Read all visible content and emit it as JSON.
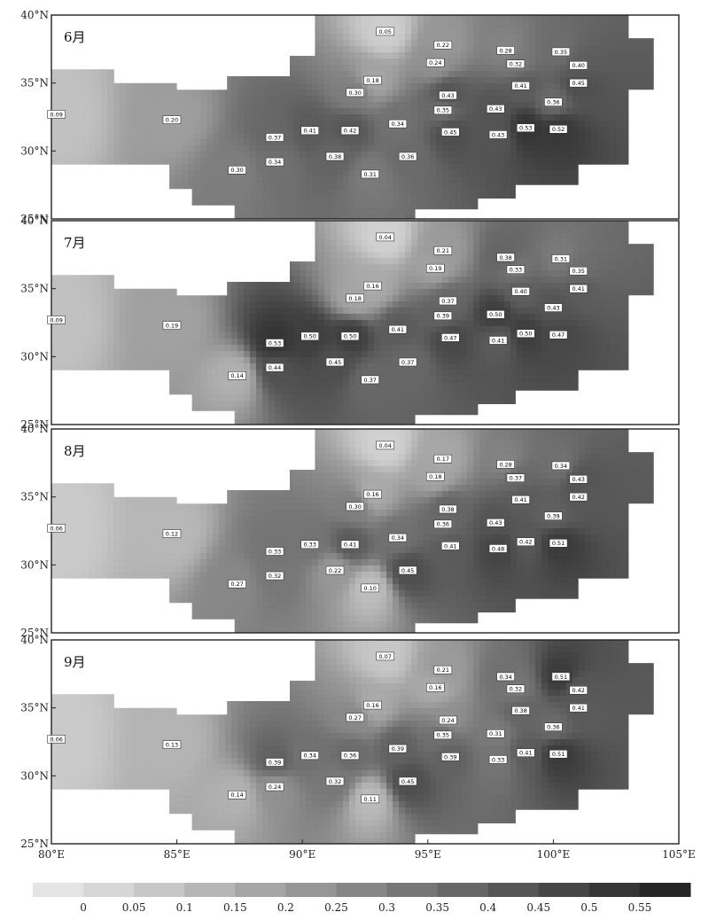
{
  "panels": [
    {
      "month": "6月",
      "stations": [
        {
          "label": "0.05",
          "lon": 93.3,
          "lat": 38.8,
          "v": 0.05
        },
        {
          "label": "0.22",
          "lon": 95.6,
          "lat": 37.8,
          "v": 0.22
        },
        {
          "label": "0.28",
          "lon": 98.1,
          "lat": 37.4,
          "v": 0.28
        },
        {
          "label": "0.35",
          "lon": 100.3,
          "lat": 37.3,
          "v": 0.35
        },
        {
          "label": "0.24",
          "lon": 95.3,
          "lat": 36.5,
          "v": 0.24
        },
        {
          "label": "0.32",
          "lon": 98.5,
          "lat": 36.4,
          "v": 0.32
        },
        {
          "label": "0.40",
          "lon": 101.0,
          "lat": 36.3,
          "v": 0.4
        },
        {
          "label": "0.18",
          "lon": 92.8,
          "lat": 35.2,
          "v": 0.18
        },
        {
          "label": "0.41",
          "lon": 98.7,
          "lat": 34.8,
          "v": 0.41
        },
        {
          "label": "0.45",
          "lon": 101.0,
          "lat": 35.0,
          "v": 0.45
        },
        {
          "label": "0.30",
          "lon": 92.1,
          "lat": 34.3,
          "v": 0.3
        },
        {
          "label": "0.43",
          "lon": 95.8,
          "lat": 34.1,
          "v": 0.43
        },
        {
          "label": "0.36",
          "lon": 100.0,
          "lat": 33.6,
          "v": 0.36
        },
        {
          "label": "0.09",
          "lon": 80.2,
          "lat": 32.7,
          "v": 0.09
        },
        {
          "label": "0.20",
          "lon": 84.8,
          "lat": 32.3,
          "v": 0.2
        },
        {
          "label": "0.35",
          "lon": 95.6,
          "lat": 33.0,
          "v": 0.35
        },
        {
          "label": "0.43",
          "lon": 97.7,
          "lat": 33.1,
          "v": 0.43
        },
        {
          "label": "0.34",
          "lon": 93.8,
          "lat": 32.0,
          "v": 0.34
        },
        {
          "label": "0.41",
          "lon": 90.3,
          "lat": 31.5,
          "v": 0.41
        },
        {
          "label": "0.42",
          "lon": 91.9,
          "lat": 31.5,
          "v": 0.42
        },
        {
          "label": "0.45",
          "lon": 95.9,
          "lat": 31.4,
          "v": 0.45
        },
        {
          "label": "0.43",
          "lon": 97.8,
          "lat": 31.2,
          "v": 0.43
        },
        {
          "label": "0.53",
          "lon": 98.9,
          "lat": 31.7,
          "v": 0.53
        },
        {
          "label": "0.52",
          "lon": 100.2,
          "lat": 31.6,
          "v": 0.52
        },
        {
          "label": "0.37",
          "lon": 88.9,
          "lat": 31.0,
          "v": 0.37
        },
        {
          "label": "0.38",
          "lon": 91.3,
          "lat": 29.6,
          "v": 0.38
        },
        {
          "label": "0.34",
          "lon": 88.9,
          "lat": 29.2,
          "v": 0.34
        },
        {
          "label": "0.36",
          "lon": 94.2,
          "lat": 29.6,
          "v": 0.36
        },
        {
          "label": "0.30",
          "lon": 87.4,
          "lat": 28.6,
          "v": 0.3
        },
        {
          "label": "0.31",
          "lon": 92.7,
          "lat": 28.3,
          "v": 0.31
        }
      ]
    },
    {
      "month": "7月",
      "stations": [
        {
          "label": "0.04",
          "lon": 93.3,
          "lat": 38.8,
          "v": 0.04
        },
        {
          "label": "0.21",
          "lon": 95.6,
          "lat": 37.8,
          "v": 0.21
        },
        {
          "label": "0.38",
          "lon": 98.1,
          "lat": 37.3,
          "v": 0.38
        },
        {
          "label": "0.31",
          "lon": 100.3,
          "lat": 37.2,
          "v": 0.31
        },
        {
          "label": "0.19",
          "lon": 95.3,
          "lat": 36.5,
          "v": 0.19
        },
        {
          "label": "0.33",
          "lon": 98.5,
          "lat": 36.4,
          "v": 0.33
        },
        {
          "label": "0.35",
          "lon": 101.0,
          "lat": 36.3,
          "v": 0.35
        },
        {
          "label": "0.16",
          "lon": 92.8,
          "lat": 35.2,
          "v": 0.16
        },
        {
          "label": "0.40",
          "lon": 98.7,
          "lat": 34.8,
          "v": 0.4
        },
        {
          "label": "0.41",
          "lon": 101.0,
          "lat": 35.0,
          "v": 0.41
        },
        {
          "label": "0.18",
          "lon": 92.1,
          "lat": 34.3,
          "v": 0.18
        },
        {
          "label": "0.37",
          "lon": 95.8,
          "lat": 34.1,
          "v": 0.37
        },
        {
          "label": "0.43",
          "lon": 100.0,
          "lat": 33.6,
          "v": 0.43
        },
        {
          "label": "0.09",
          "lon": 80.2,
          "lat": 32.7,
          "v": 0.09
        },
        {
          "label": "0.19",
          "lon": 84.8,
          "lat": 32.3,
          "v": 0.19
        },
        {
          "label": "0.39",
          "lon": 95.6,
          "lat": 33.0,
          "v": 0.39
        },
        {
          "label": "0.50",
          "lon": 97.7,
          "lat": 33.1,
          "v": 0.5
        },
        {
          "label": "0.41",
          "lon": 93.8,
          "lat": 32.0,
          "v": 0.41
        },
        {
          "label": "0.50",
          "lon": 90.3,
          "lat": 31.5,
          "v": 0.5
        },
        {
          "label": "0.50",
          "lon": 91.9,
          "lat": 31.5,
          "v": 0.5
        },
        {
          "label": "0.47",
          "lon": 95.9,
          "lat": 31.4,
          "v": 0.47
        },
        {
          "label": "0.41",
          "lon": 97.8,
          "lat": 31.2,
          "v": 0.41
        },
        {
          "label": "0.50",
          "lon": 98.9,
          "lat": 31.7,
          "v": 0.5
        },
        {
          "label": "0.47",
          "lon": 100.2,
          "lat": 31.6,
          "v": 0.47
        },
        {
          "label": "0.53",
          "lon": 88.9,
          "lat": 31.0,
          "v": 0.53
        },
        {
          "label": "0.45",
          "lon": 91.3,
          "lat": 29.6,
          "v": 0.45
        },
        {
          "label": "0.44",
          "lon": 88.9,
          "lat": 29.2,
          "v": 0.44
        },
        {
          "label": "0.37",
          "lon": 94.2,
          "lat": 29.6,
          "v": 0.37
        },
        {
          "label": "0.14",
          "lon": 87.4,
          "lat": 28.6,
          "v": 0.14
        },
        {
          "label": "0.37",
          "lon": 92.7,
          "lat": 28.3,
          "v": 0.37
        }
      ]
    },
    {
      "month": "8月",
      "stations": [
        {
          "label": "0.04",
          "lon": 93.3,
          "lat": 38.8,
          "v": 0.04
        },
        {
          "label": "0.17",
          "lon": 95.6,
          "lat": 37.8,
          "v": 0.17
        },
        {
          "label": "0.28",
          "lon": 98.1,
          "lat": 37.4,
          "v": 0.28
        },
        {
          "label": "0.34",
          "lon": 100.3,
          "lat": 37.3,
          "v": 0.34
        },
        {
          "label": "0.18",
          "lon": 95.3,
          "lat": 36.5,
          "v": 0.18
        },
        {
          "label": "0.37",
          "lon": 98.5,
          "lat": 36.4,
          "v": 0.37
        },
        {
          "label": "0.43",
          "lon": 101.0,
          "lat": 36.3,
          "v": 0.43
        },
        {
          "label": "0.16",
          "lon": 92.8,
          "lat": 35.2,
          "v": 0.16
        },
        {
          "label": "0.41",
          "lon": 98.7,
          "lat": 34.8,
          "v": 0.41
        },
        {
          "label": "0.42",
          "lon": 101.0,
          "lat": 35.0,
          "v": 0.42
        },
        {
          "label": "0.30",
          "lon": 92.1,
          "lat": 34.3,
          "v": 0.3
        },
        {
          "label": "0.38",
          "lon": 95.8,
          "lat": 34.1,
          "v": 0.38
        },
        {
          "label": "0.39",
          "lon": 100.0,
          "lat": 33.6,
          "v": 0.39
        },
        {
          "label": "0.06",
          "lon": 80.2,
          "lat": 32.7,
          "v": 0.06
        },
        {
          "label": "0.12",
          "lon": 84.8,
          "lat": 32.3,
          "v": 0.12
        },
        {
          "label": "0.36",
          "lon": 95.6,
          "lat": 33.0,
          "v": 0.36
        },
        {
          "label": "0.43",
          "lon": 97.7,
          "lat": 33.1,
          "v": 0.43
        },
        {
          "label": "0.34",
          "lon": 93.8,
          "lat": 32.0,
          "v": 0.34
        },
        {
          "label": "0.33",
          "lon": 90.3,
          "lat": 31.5,
          "v": 0.33
        },
        {
          "label": "0.41",
          "lon": 91.9,
          "lat": 31.5,
          "v": 0.41
        },
        {
          "label": "0.41",
          "lon": 95.9,
          "lat": 31.4,
          "v": 0.41
        },
        {
          "label": "0.48",
          "lon": 97.8,
          "lat": 31.2,
          "v": 0.48
        },
        {
          "label": "0.42",
          "lon": 98.9,
          "lat": 31.7,
          "v": 0.42
        },
        {
          "label": "0.51",
          "lon": 100.2,
          "lat": 31.6,
          "v": 0.51
        },
        {
          "label": "0.33",
          "lon": 88.9,
          "lat": 31.0,
          "v": 0.33
        },
        {
          "label": "0.22",
          "lon": 91.3,
          "lat": 29.6,
          "v": 0.22
        },
        {
          "label": "0.32",
          "lon": 88.9,
          "lat": 29.2,
          "v": 0.32
        },
        {
          "label": "0.45",
          "lon": 94.2,
          "lat": 29.6,
          "v": 0.45
        },
        {
          "label": "0.27",
          "lon": 87.4,
          "lat": 28.6,
          "v": 0.27
        },
        {
          "label": "0.10",
          "lon": 92.7,
          "lat": 28.3,
          "v": 0.1
        }
      ]
    },
    {
      "month": "9月",
      "stations": [
        {
          "label": "0.07",
          "lon": 93.3,
          "lat": 38.8,
          "v": 0.07
        },
        {
          "label": "0.21",
          "lon": 95.6,
          "lat": 37.8,
          "v": 0.21
        },
        {
          "label": "0.34",
          "lon": 98.1,
          "lat": 37.3,
          "v": 0.34
        },
        {
          "label": "0.51",
          "lon": 100.3,
          "lat": 37.3,
          "v": 0.51
        },
        {
          "label": "0.16",
          "lon": 95.3,
          "lat": 36.5,
          "v": 0.16
        },
        {
          "label": "0.32",
          "lon": 98.5,
          "lat": 36.4,
          "v": 0.32
        },
        {
          "label": "0.42",
          "lon": 101.0,
          "lat": 36.3,
          "v": 0.42
        },
        {
          "label": "0.16",
          "lon": 92.8,
          "lat": 35.2,
          "v": 0.16
        },
        {
          "label": "0.38",
          "lon": 98.7,
          "lat": 34.8,
          "v": 0.38
        },
        {
          "label": "0.41",
          "lon": 101.0,
          "lat": 35.0,
          "v": 0.41
        },
        {
          "label": "0.27",
          "lon": 92.1,
          "lat": 34.3,
          "v": 0.27
        },
        {
          "label": "0.24",
          "lon": 95.8,
          "lat": 34.1,
          "v": 0.24
        },
        {
          "label": "0.36",
          "lon": 100.0,
          "lat": 33.6,
          "v": 0.36
        },
        {
          "label": "0.06",
          "lon": 80.2,
          "lat": 32.7,
          "v": 0.06
        },
        {
          "label": "0.13",
          "lon": 84.8,
          "lat": 32.3,
          "v": 0.13
        },
        {
          "label": "0.35",
          "lon": 95.6,
          "lat": 33.0,
          "v": 0.35
        },
        {
          "label": "0.31",
          "lon": 97.7,
          "lat": 33.1,
          "v": 0.31
        },
        {
          "label": "0.39",
          "lon": 93.8,
          "lat": 32.0,
          "v": 0.39
        },
        {
          "label": "0.34",
          "lon": 90.3,
          "lat": 31.5,
          "v": 0.34
        },
        {
          "label": "0.36",
          "lon": 91.9,
          "lat": 31.5,
          "v": 0.36
        },
        {
          "label": "0.39",
          "lon": 95.9,
          "lat": 31.4,
          "v": 0.39
        },
        {
          "label": "0.33",
          "lon": 97.8,
          "lat": 31.2,
          "v": 0.33
        },
        {
          "label": "0.41",
          "lon": 98.9,
          "lat": 31.7,
          "v": 0.41
        },
        {
          "label": "0.51",
          "lon": 100.2,
          "lat": 31.6,
          "v": 0.51
        },
        {
          "label": "0.39",
          "lon": 88.9,
          "lat": 31.0,
          "v": 0.39
        },
        {
          "label": "0.32",
          "lon": 91.3,
          "lat": 29.6,
          "v": 0.32
        },
        {
          "label": "0.24",
          "lon": 88.9,
          "lat": 29.2,
          "v": 0.24
        },
        {
          "label": "0.45",
          "lon": 94.2,
          "lat": 29.6,
          "v": 0.45
        },
        {
          "label": "0.14",
          "lon": 87.4,
          "lat": 28.6,
          "v": 0.14
        },
        {
          "label": "0.11",
          "lon": 92.7,
          "lat": 28.3,
          "v": 0.11
        }
      ]
    }
  ],
  "lat_ticks": [
    {
      "label": "40°N",
      "lat": 40
    },
    {
      "label": "35°N",
      "lat": 35
    },
    {
      "label": "30°N",
      "lat": 30
    },
    {
      "label": "25°N",
      "lat": 25
    }
  ],
  "lon_ticks": [
    {
      "label": "80°E",
      "lon": 80
    },
    {
      "label": "85°E",
      "lon": 85
    },
    {
      "label": "90°E",
      "lon": 90
    },
    {
      "label": "95°E",
      "lon": 95
    },
    {
      "label": "100°E",
      "lon": 100
    },
    {
      "label": "105°E",
      "lon": 105
    }
  ],
  "colorbar": {
    "ticks": [
      "0",
      "0.05",
      "0.1",
      "0.15",
      "0.2",
      "0.25",
      "0.3",
      "0.35",
      "0.4",
      "0.45",
      "0.5",
      "0.55"
    ],
    "vmin": -0.02,
    "vmax": 0.6,
    "color_low": "#e4e4e4",
    "color_high": "#1e1e1e"
  },
  "colors": {
    "blank": "#ffffff",
    "frame": "#222222",
    "label_box_fill": "#ffffff",
    "label_box_stroke": "#333333"
  }
}
